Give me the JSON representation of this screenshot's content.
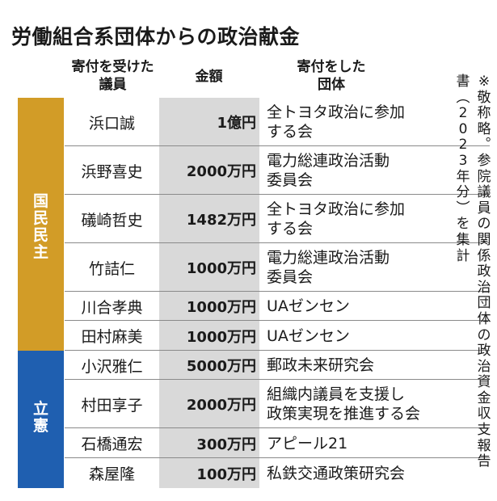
{
  "title": "労働組合系団体からの政治献金",
  "headers": {
    "member_line1": "寄付を受けた",
    "member_line2": "議員",
    "amount": "金額",
    "donor_line1": "寄付をした",
    "donor_line2": "団体"
  },
  "parties": {
    "dpfp": {
      "name": "国民民主",
      "color": "#d29c27"
    },
    "cdp": {
      "name": "立憲",
      "color": "#1f5fb0"
    }
  },
  "rows": [
    {
      "member": "浜口誠",
      "amount": "1億円",
      "donor_line1": "全トヨタ政治に参加",
      "donor_line2": "する会"
    },
    {
      "member": "浜野喜史",
      "amount": "2000万円",
      "donor_line1": "電力総連政治活動",
      "donor_line2": "委員会"
    },
    {
      "member": "礒崎哲史",
      "amount": "1482万円",
      "donor_line1": "全トヨタ政治に参加",
      "donor_line2": "する会"
    },
    {
      "member": "竹詰仁",
      "amount": "1000万円",
      "donor_line1": "電力総連政治活動",
      "donor_line2": "委員会"
    },
    {
      "member": "川合孝典",
      "amount": "1000万円",
      "donor_line1": "UAゼンセン",
      "donor_line2": ""
    },
    {
      "member": "田村麻美",
      "amount": "1000万円",
      "donor_line1": "UAゼンセン",
      "donor_line2": ""
    },
    {
      "member": "小沢雅仁",
      "amount": "5000万円",
      "donor_line1": "郵政未来研究会",
      "donor_line2": ""
    },
    {
      "member": "村田享子",
      "amount": "2000万円",
      "donor_line1": "組織内議員を支援し",
      "donor_line2": "政策実現を推進する会"
    },
    {
      "member": "石橋通宏",
      "amount": "300万円",
      "donor_line1": "アピール21",
      "donor_line2": ""
    },
    {
      "member": "森屋隆",
      "amount": "100万円",
      "donor_line1": "私鉄交通政策研究会",
      "donor_line2": ""
    }
  ],
  "note": "※敬称略。参院議員の関係政治団体の政治資金収支報告書（2023年分）を集計"
}
